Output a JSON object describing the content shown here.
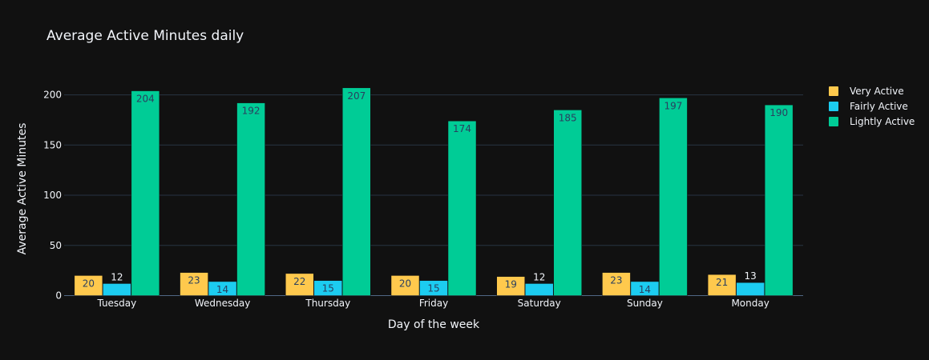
{
  "chart_data": {
    "type": "bar",
    "title": "Average Active Minutes daily",
    "xlabel": "Day of the week",
    "ylabel": "Average Active Minutes",
    "categories": [
      "Tuesday",
      "Wednesday",
      "Thursday",
      "Friday",
      "Saturday",
      "Sunday",
      "Monday"
    ],
    "ylim": [
      0,
      218
    ],
    "yticks": [
      0,
      50,
      100,
      150,
      200
    ],
    "grid": true,
    "legend_position": "top-right",
    "series": [
      {
        "name": "Very Active",
        "color": "#FFC94D",
        "values": [
          20,
          23,
          22,
          20,
          19,
          23,
          21
        ]
      },
      {
        "name": "Fairly Active",
        "color": "#1CCCF0",
        "values": [
          12,
          14,
          15,
          15,
          12,
          14,
          13
        ]
      },
      {
        "name": "Lightly Active",
        "color": "#00CC96",
        "values": [
          204,
          192,
          207,
          174,
          185,
          197,
          190
        ]
      }
    ]
  }
}
